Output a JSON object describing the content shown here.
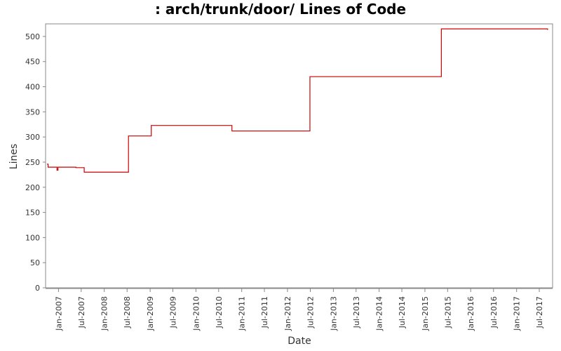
{
  "chart_data": {
    "type": "line",
    "title": ": arch/trunk/door/ Lines of Code",
    "xlabel": "Date",
    "ylabel": "Lines",
    "ylim": [
      0,
      525
    ],
    "xlim": [
      "2006-09-20",
      "2017-10-15"
    ],
    "yticks": [
      0,
      50,
      100,
      150,
      200,
      250,
      300,
      350,
      400,
      450,
      500
    ],
    "xticks": [
      "Jan-2007",
      "Jul-2007",
      "Jan-2008",
      "Jul-2008",
      "Jan-2009",
      "Jul-2009",
      "Jan-2010",
      "Jul-2010",
      "Jan-2011",
      "Jul-2011",
      "Jan-2012",
      "Jul-2012",
      "Jan-2013",
      "Jul-2013",
      "Jan-2014",
      "Jul-2014",
      "Jan-2015",
      "Jul-2015",
      "Jan-2016",
      "Jul-2016",
      "Jan-2017",
      "Jul-2017"
    ],
    "grid": false,
    "line_color": "#cc0000",
    "series": [
      {
        "step": true,
        "points": [
          [
            "2006-10-01",
            246
          ],
          [
            "2006-10-10",
            240
          ],
          [
            "2006-12-15",
            240
          ],
          [
            "2006-12-20",
            234
          ],
          [
            "2006-12-28",
            240
          ],
          [
            "2007-05-15",
            240
          ],
          [
            "2007-05-20",
            239
          ],
          [
            "2007-07-20",
            239
          ],
          [
            "2007-07-25",
            230
          ],
          [
            "2008-07-10",
            230
          ],
          [
            "2008-07-12",
            302
          ],
          [
            "2009-01-08",
            302
          ],
          [
            "2009-01-10",
            323
          ],
          [
            "2010-10-12",
            323
          ],
          [
            "2010-10-15",
            312
          ],
          [
            "2012-06-25",
            312
          ],
          [
            "2012-06-28",
            420
          ],
          [
            "2015-05-10",
            420
          ],
          [
            "2015-05-12",
            515
          ],
          [
            "2017-09-01",
            515
          ],
          [
            "2017-09-05",
            513
          ]
        ]
      }
    ]
  }
}
